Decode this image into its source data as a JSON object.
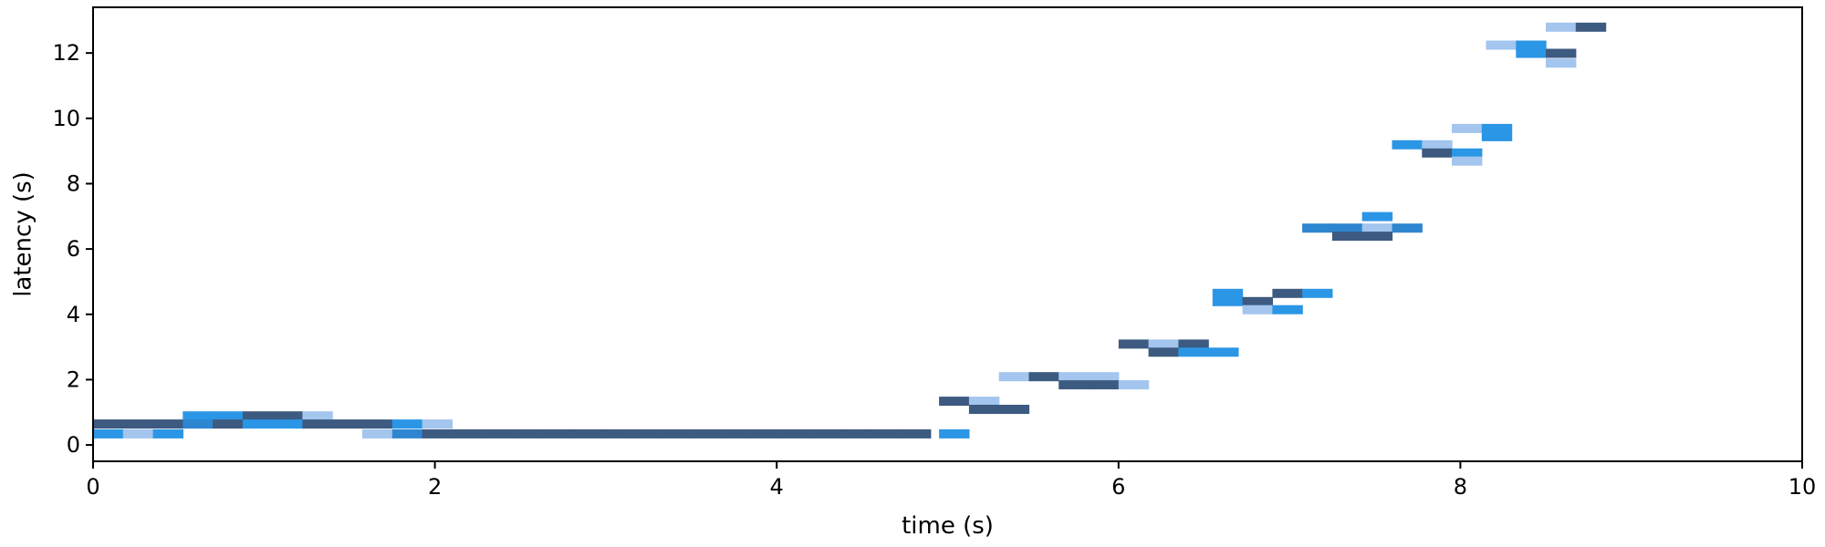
{
  "chart_data": {
    "type": "heatmap",
    "title": "",
    "xlabel": "time (s)",
    "ylabel": "latency (s)",
    "xlim": [
      0,
      10
    ],
    "ylim": [
      -0.5,
      13.4
    ],
    "xticks": [
      0,
      2,
      4,
      6,
      8,
      10
    ],
    "yticks": [
      0,
      2,
      4,
      6,
      8,
      10,
      12
    ],
    "grid": false,
    "bin_width": 0.175,
    "bin_height": 0.28,
    "colors": {
      "dark": "#3d5a80",
      "mid": "#2e86d0",
      "bright": "#2b96e6",
      "light": "#a3c5ee"
    },
    "cells": [
      {
        "x": 0.0,
        "y": 0.5,
        "c": "dark"
      },
      {
        "x": 0.0,
        "y": 0.2,
        "c": "bright"
      },
      {
        "x": 0.175,
        "y": 0.5,
        "c": "dark"
      },
      {
        "x": 0.175,
        "y": 0.2,
        "c": "light"
      },
      {
        "x": 0.35,
        "y": 0.5,
        "c": "dark"
      },
      {
        "x": 0.35,
        "y": 0.2,
        "c": "bright"
      },
      {
        "x": 0.525,
        "y": 0.75,
        "c": "bright"
      },
      {
        "x": 0.525,
        "y": 0.5,
        "c": "mid"
      },
      {
        "x": 0.7,
        "y": 0.75,
        "c": "bright"
      },
      {
        "x": 0.7,
        "y": 0.5,
        "c": "dark"
      },
      {
        "x": 0.875,
        "y": 0.75,
        "c": "dark"
      },
      {
        "x": 0.875,
        "y": 0.5,
        "c": "bright"
      },
      {
        "x": 1.05,
        "y": 0.75,
        "c": "dark"
      },
      {
        "x": 1.05,
        "y": 0.5,
        "c": "bright"
      },
      {
        "x": 1.225,
        "y": 0.75,
        "c": "light"
      },
      {
        "x": 1.225,
        "y": 0.5,
        "c": "dark"
      },
      {
        "x": 1.4,
        "y": 0.5,
        "c": "dark"
      },
      {
        "x": 1.575,
        "y": 0.5,
        "c": "dark"
      },
      {
        "x": 1.575,
        "y": 0.2,
        "c": "light"
      },
      {
        "x": 1.75,
        "y": 0.5,
        "c": "bright"
      },
      {
        "x": 1.75,
        "y": 0.2,
        "c": "mid"
      },
      {
        "x": 1.925,
        "y": 0.5,
        "c": "light"
      },
      {
        "x": 1.925,
        "y": 0.2,
        "c": "dark"
      },
      {
        "x": 2.1,
        "y": 0.2,
        "c": "dark"
      },
      {
        "x": 2.275,
        "y": 0.2,
        "c": "dark"
      },
      {
        "x": 2.45,
        "y": 0.2,
        "c": "dark"
      },
      {
        "x": 2.625,
        "y": 0.2,
        "c": "dark"
      },
      {
        "x": 2.8,
        "y": 0.2,
        "c": "dark"
      },
      {
        "x": 2.975,
        "y": 0.2,
        "c": "dark"
      },
      {
        "x": 3.15,
        "y": 0.2,
        "c": "dark"
      },
      {
        "x": 3.325,
        "y": 0.2,
        "c": "dark"
      },
      {
        "x": 3.5,
        "y": 0.2,
        "c": "dark"
      },
      {
        "x": 3.675,
        "y": 0.2,
        "c": "dark"
      },
      {
        "x": 3.85,
        "y": 0.2,
        "c": "dark"
      },
      {
        "x": 4.025,
        "y": 0.2,
        "c": "dark"
      },
      {
        "x": 4.2,
        "y": 0.2,
        "c": "dark"
      },
      {
        "x": 4.375,
        "y": 0.2,
        "c": "dark"
      },
      {
        "x": 4.55,
        "y": 0.2,
        "c": "dark"
      },
      {
        "x": 4.725,
        "y": 0.2,
        "c": "dark"
      },
      {
        "x": 4.95,
        "y": 0.2,
        "c": "bright"
      },
      {
        "x": 4.95,
        "y": 1.2,
        "c": "dark"
      },
      {
        "x": 5.125,
        "y": 1.2,
        "c": "light"
      },
      {
        "x": 5.125,
        "y": 0.95,
        "c": "dark"
      },
      {
        "x": 5.3,
        "y": 0.95,
        "c": "dark"
      },
      {
        "x": 5.3,
        "y": 1.95,
        "c": "light"
      },
      {
        "x": 5.475,
        "y": 1.95,
        "c": "dark"
      },
      {
        "x": 5.65,
        "y": 1.95,
        "c": "light"
      },
      {
        "x": 5.65,
        "y": 1.7,
        "c": "dark"
      },
      {
        "x": 5.825,
        "y": 1.95,
        "c": "light"
      },
      {
        "x": 5.825,
        "y": 1.7,
        "c": "dark"
      },
      {
        "x": 6.0,
        "y": 1.7,
        "c": "light"
      },
      {
        "x": 6.0,
        "y": 2.95,
        "c": "dark"
      },
      {
        "x": 6.175,
        "y": 2.95,
        "c": "light"
      },
      {
        "x": 6.175,
        "y": 2.7,
        "c": "dark"
      },
      {
        "x": 6.35,
        "y": 2.95,
        "c": "dark"
      },
      {
        "x": 6.35,
        "y": 2.7,
        "c": "bright"
      },
      {
        "x": 6.525,
        "y": 2.7,
        "c": "bright"
      },
      {
        "x": 6.55,
        "y": 4.5,
        "c": "bright"
      },
      {
        "x": 6.55,
        "y": 4.25,
        "c": "bright"
      },
      {
        "x": 6.725,
        "y": 4.25,
        "c": "dark"
      },
      {
        "x": 6.725,
        "y": 4.0,
        "c": "light"
      },
      {
        "x": 6.9,
        "y": 4.5,
        "c": "dark"
      },
      {
        "x": 6.9,
        "y": 4.0,
        "c": "bright"
      },
      {
        "x": 7.075,
        "y": 4.5,
        "c": "bright"
      },
      {
        "x": 7.075,
        "y": 6.5,
        "c": "mid"
      },
      {
        "x": 7.25,
        "y": 6.5,
        "c": "mid"
      },
      {
        "x": 7.25,
        "y": 6.25,
        "c": "dark"
      },
      {
        "x": 7.425,
        "y": 6.85,
        "c": "bright"
      },
      {
        "x": 7.425,
        "y": 6.5,
        "c": "light"
      },
      {
        "x": 7.425,
        "y": 6.25,
        "c": "dark"
      },
      {
        "x": 7.6,
        "y": 6.5,
        "c": "mid"
      },
      {
        "x": 7.6,
        "y": 9.05,
        "c": "bright"
      },
      {
        "x": 7.775,
        "y": 9.05,
        "c": "light"
      },
      {
        "x": 7.775,
        "y": 8.8,
        "c": "dark"
      },
      {
        "x": 7.95,
        "y": 9.55,
        "c": "light"
      },
      {
        "x": 7.95,
        "y": 8.8,
        "c": "bright"
      },
      {
        "x": 7.95,
        "y": 8.55,
        "c": "light"
      },
      {
        "x": 8.125,
        "y": 9.55,
        "c": "bright"
      },
      {
        "x": 8.125,
        "y": 9.3,
        "c": "bright"
      },
      {
        "x": 8.15,
        "y": 12.1,
        "c": "light"
      },
      {
        "x": 8.325,
        "y": 12.1,
        "c": "bright"
      },
      {
        "x": 8.325,
        "y": 11.85,
        "c": "bright"
      },
      {
        "x": 8.5,
        "y": 12.65,
        "c": "light"
      },
      {
        "x": 8.5,
        "y": 11.85,
        "c": "dark"
      },
      {
        "x": 8.5,
        "y": 11.55,
        "c": "light"
      },
      {
        "x": 8.675,
        "y": 12.65,
        "c": "dark"
      }
    ]
  }
}
